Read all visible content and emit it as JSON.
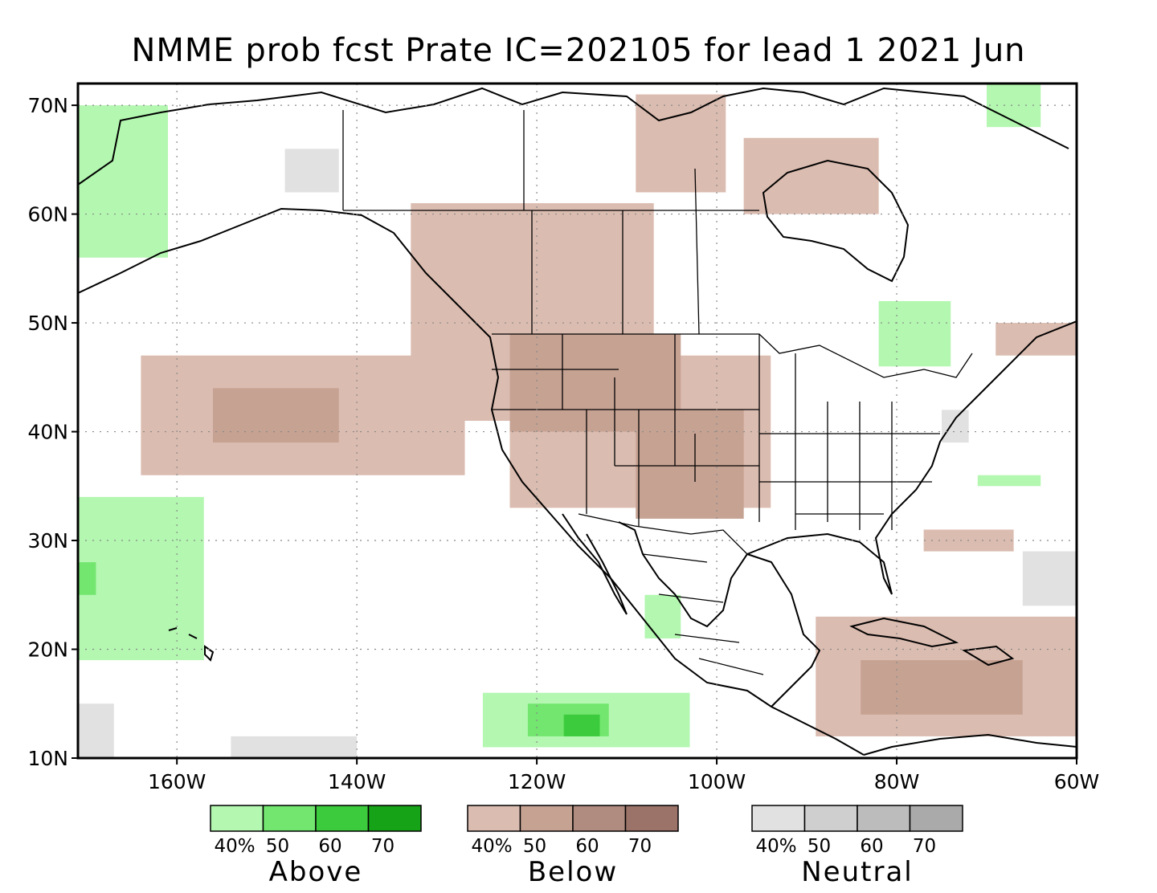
{
  "title": "NMME prob fcst Prate IC=202105 for lead 1 2021 Jun",
  "map": {
    "lon_range": [
      -171,
      -60
    ],
    "lat_range": [
      10,
      72
    ],
    "lat_ticks": [
      {
        "value": 70,
        "label": "70N"
      },
      {
        "value": 60,
        "label": "60N"
      },
      {
        "value": 50,
        "label": "50N"
      },
      {
        "value": 40,
        "label": "40N"
      },
      {
        "value": 30,
        "label": "30N"
      },
      {
        "value": 20,
        "label": "20N"
      },
      {
        "value": 10,
        "label": "10N"
      }
    ],
    "lon_ticks": [
      {
        "value": -160,
        "label": "160W"
      },
      {
        "value": -140,
        "label": "140W"
      },
      {
        "value": -120,
        "label": "120W"
      },
      {
        "value": -100,
        "label": "100W"
      },
      {
        "value": -80,
        "label": "80W"
      },
      {
        "value": -60,
        "label": "60W"
      }
    ],
    "gridlines": "dotted"
  },
  "legend": [
    {
      "name": "Above",
      "colors": [
        "#b3f7b0",
        "#72e66f",
        "#3ccb3c",
        "#17a317"
      ],
      "ticks": [
        "40%",
        "50",
        "60",
        "70"
      ]
    },
    {
      "name": "Below",
      "colors": [
        "#dbbcb0",
        "#c6a293",
        "#b08c80",
        "#9b7369"
      ],
      "ticks": [
        "40%",
        "50",
        "60",
        "70"
      ]
    },
    {
      "name": "Neutral",
      "colors": [
        "#e1e1e1",
        "#cfcfcf",
        "#bcbcbc",
        "#aaaaaa"
      ],
      "ticks": [
        "40%",
        "50",
        "60",
        "70"
      ]
    }
  ],
  "regions": {
    "below": [
      {
        "level": 1,
        "lon": [
          -134,
          -107
        ],
        "lat": [
          41,
          61
        ]
      },
      {
        "level": 1,
        "lon": [
          -123,
          -94
        ],
        "lat": [
          33,
          47
        ]
      },
      {
        "level": 2,
        "lon": [
          -123,
          -104
        ],
        "lat": [
          40,
          49
        ]
      },
      {
        "level": 2,
        "lon": [
          -109,
          -97
        ],
        "lat": [
          32,
          42
        ]
      },
      {
        "level": 1,
        "lon": [
          -164,
          -128
        ],
        "lat": [
          36,
          47
        ]
      },
      {
        "level": 2,
        "lon": [
          -156,
          -142
        ],
        "lat": [
          39,
          44
        ]
      },
      {
        "level": 1,
        "lon": [
          -89,
          -60
        ],
        "lat": [
          12,
          23
        ]
      },
      {
        "level": 2,
        "lon": [
          -84,
          -66
        ],
        "lat": [
          14,
          19
        ]
      },
      {
        "level": 1,
        "lon": [
          -109,
          -99
        ],
        "lat": [
          62,
          71
        ]
      },
      {
        "level": 1,
        "lon": [
          -97,
          -82
        ],
        "lat": [
          60,
          67
        ]
      },
      {
        "level": 1,
        "lon": [
          -77,
          -67
        ],
        "lat": [
          29,
          31
        ]
      },
      {
        "level": 1,
        "lon": [
          -69,
          -60
        ],
        "lat": [
          47,
          50
        ]
      }
    ],
    "above": [
      {
        "level": 1,
        "lon": [
          -171,
          -161
        ],
        "lat": [
          56,
          70
        ]
      },
      {
        "level": 1,
        "lon": [
          -171,
          -157
        ],
        "lat": [
          19,
          34
        ]
      },
      {
        "level": 2,
        "lon": [
          -171,
          -169
        ],
        "lat": [
          25,
          28
        ]
      },
      {
        "level": 1,
        "lon": [
          -126,
          -103
        ],
        "lat": [
          11,
          16
        ]
      },
      {
        "level": 2,
        "lon": [
          -121,
          -112
        ],
        "lat": [
          12,
          15
        ]
      },
      {
        "level": 3,
        "lon": [
          -117,
          -113
        ],
        "lat": [
          12,
          14
        ]
      },
      {
        "level": 1,
        "lon": [
          -82,
          -74
        ],
        "lat": [
          46,
          52
        ]
      },
      {
        "level": 1,
        "lon": [
          -70,
          -64
        ],
        "lat": [
          68,
          72
        ]
      },
      {
        "level": 1,
        "lon": [
          -71,
          -64
        ],
        "lat": [
          35,
          36
        ]
      },
      {
        "level": 1,
        "lon": [
          -108,
          -104
        ],
        "lat": [
          21,
          25
        ]
      }
    ],
    "neutral": [
      {
        "level": 1,
        "lon": [
          -171,
          -167
        ],
        "lat": [
          10,
          15
        ]
      },
      {
        "level": 1,
        "lon": [
          -148,
          -142
        ],
        "lat": [
          62,
          66
        ]
      },
      {
        "level": 1,
        "lon": [
          -66,
          -60
        ],
        "lat": [
          24,
          29
        ]
      },
      {
        "level": 1,
        "lon": [
          -154,
          -140
        ],
        "lat": [
          10,
          12
        ]
      },
      {
        "level": 1,
        "lon": [
          -75,
          -72
        ],
        "lat": [
          39,
          42
        ]
      }
    ]
  }
}
